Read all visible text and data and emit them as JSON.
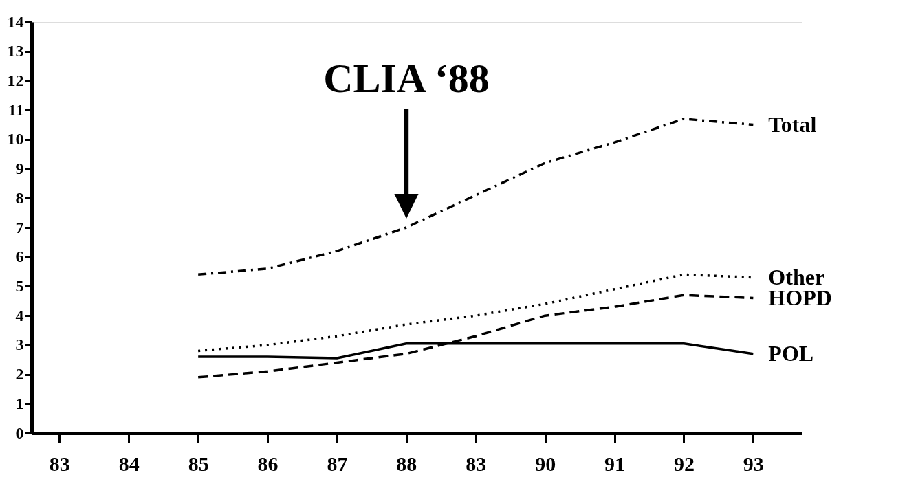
{
  "chart_data": {
    "type": "line",
    "categories": [
      "83",
      "84",
      "85",
      "86",
      "87",
      "88",
      "83",
      "90",
      "91",
      "92",
      "93"
    ],
    "series": [
      {
        "name": "Total",
        "color": "#000000",
        "line_style": "dashdot",
        "values": [
          null,
          null,
          5.4,
          5.6,
          6.2,
          7.0,
          8.1,
          9.2,
          9.9,
          10.7,
          10.5
        ]
      },
      {
        "name": "Other",
        "color": "#000000",
        "line_style": "dotted",
        "values": [
          null,
          null,
          2.8,
          3.0,
          3.3,
          3.7,
          4.0,
          4.4,
          4.9,
          5.4,
          5.3
        ]
      },
      {
        "name": "HOPD",
        "color": "#000000",
        "line_style": "dashed",
        "values": [
          null,
          null,
          1.9,
          2.1,
          2.4,
          2.7,
          3.3,
          4.0,
          4.3,
          4.7,
          4.6
        ]
      },
      {
        "name": "POL",
        "color": "#000000",
        "line_style": "solid",
        "values": [
          null,
          null,
          2.6,
          2.6,
          2.55,
          3.05,
          3.05,
          3.05,
          3.05,
          3.05,
          2.7
        ]
      }
    ],
    "ylim": [
      0,
      14
    ],
    "yticks": [
      0,
      1,
      2,
      3,
      4,
      5,
      6,
      7,
      8,
      9,
      10,
      11,
      12,
      13,
      14
    ],
    "grid": false,
    "legend": false,
    "marker": "none",
    "annotations": [
      "CLIA ‘88"
    ]
  }
}
